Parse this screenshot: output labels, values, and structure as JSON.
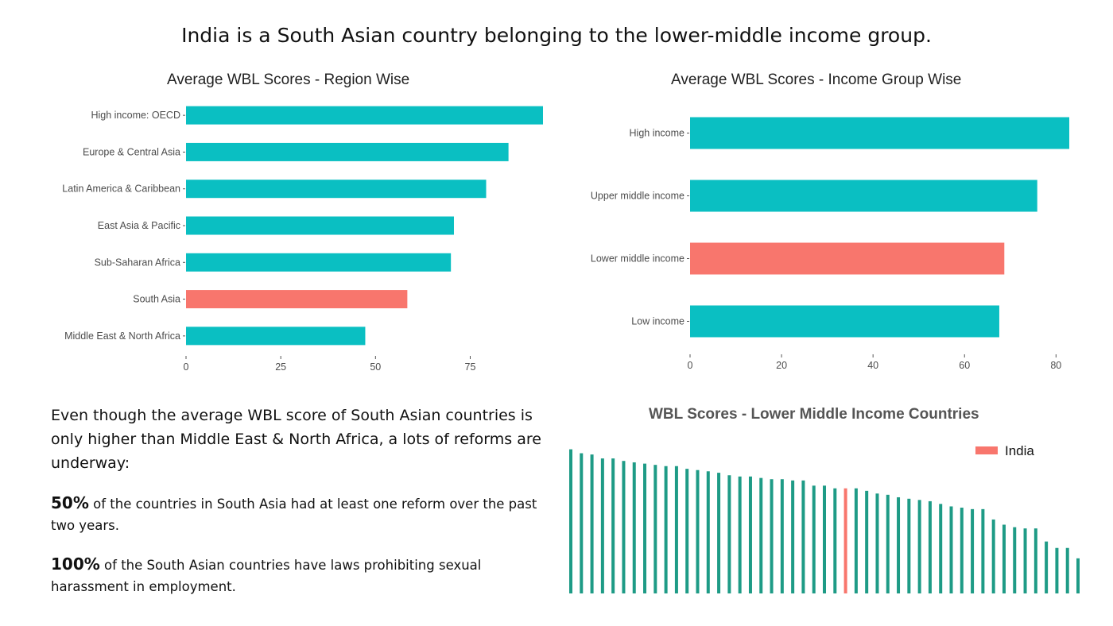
{
  "headline": "India is a South Asian country belonging to the lower-middle income group.",
  "colors": {
    "teal": "#0ABFC2",
    "salmon": "#F8766D",
    "dark_teal": "#1E9B86",
    "axis_text": "#4d4d4d"
  },
  "text_panel": {
    "intro": "Even though the average WBL score of South Asian countries is only higher than Middle East & North Africa, a lots of reforms are underway:",
    "stat1_value": "50%",
    "stat1_text": " of the countries in South Asia had at least one reform over the past two years.",
    "stat2_value": "100%",
    "stat2_text": " of the South Asian countries have laws prohibiting sexual harassment in employment."
  },
  "chart_data": [
    {
      "type": "bar",
      "orientation": "horizontal",
      "title": "Average WBL Scores - Region Wise",
      "categories": [
        "High income: OECD",
        "Europe & Central Asia",
        "Latin America & Caribbean",
        "East Asia & Pacific",
        "Sub-Saharan Africa",
        "South Asia",
        "Middle East & North Africa"
      ],
      "values": [
        94.2,
        85.1,
        79.2,
        70.7,
        69.9,
        58.4,
        47.3
      ],
      "highlight": "South Asia",
      "xlim": [
        0,
        94.2
      ],
      "xticks": [
        0,
        25,
        50,
        75
      ],
      "grid": false
    },
    {
      "type": "bar",
      "orientation": "horizontal",
      "title": "Average WBL Scores - Income Group Wise",
      "categories": [
        "High income",
        "Upper middle income",
        "Lower middle income",
        "Low income"
      ],
      "values": [
        82.9,
        75.9,
        68.7,
        67.6
      ],
      "highlight": "Lower middle income",
      "xlim": [
        0,
        82.9
      ],
      "xticks": [
        0,
        20,
        40,
        60,
        80
      ],
      "grid": false
    },
    {
      "type": "bar",
      "orientation": "vertical",
      "title": "WBL Scores - Lower Middle Income Countries",
      "legend": {
        "label": "India",
        "placement": "top-right"
      },
      "values": [
        89.4,
        87.5,
        86.9,
        85.0,
        85.0,
        83.8,
        83.1,
        82.5,
        81.9,
        81.3,
        81.3,
        80.0,
        79.4,
        78.8,
        78.1,
        76.9,
        76.3,
        76.3,
        75.6,
        75.0,
        75.0,
        74.4,
        74.4,
        71.9,
        71.9,
        70.6,
        70.6,
        70.6,
        69.4,
        68.1,
        67.5,
        66.3,
        65.6,
        65.0,
        64.4,
        63.1,
        61.9,
        61.3,
        60.6,
        60.6,
        55.6,
        53.1,
        51.9,
        51.3,
        51.3,
        45.0,
        41.9,
        41.9,
        36.9
      ],
      "highlight_index": 26,
      "highlight_label": "India",
      "ylim": [
        20,
        90
      ],
      "axes_visible": false,
      "grid": false
    }
  ]
}
